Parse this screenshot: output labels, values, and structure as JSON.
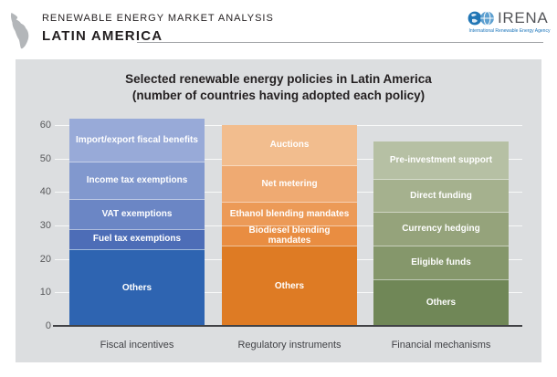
{
  "header": {
    "kicker": "RENEWABLE ENERGY MARKET ANALYSIS",
    "region": "LATIN AMERICA",
    "logo": {
      "word": "IRENA",
      "tagline": "International Renewable Energy Agency",
      "blue": "#1b75bb"
    }
  },
  "chart_data": {
    "type": "bar",
    "stacked": true,
    "title_line1": "Selected renewable energy policies in Latin America",
    "title_line2": "(number of countries having adopted each policy)",
    "xlabel": "",
    "ylabel": "",
    "ylim": [
      0,
      60
    ],
    "yticks": [
      0,
      10,
      20,
      30,
      40,
      50,
      60
    ],
    "grid": true,
    "legend": "none (labels inside segments)",
    "categories": [
      "Fiscal incentives",
      "Regulatory instruments",
      "Financial mechanisms"
    ],
    "bars": [
      {
        "category": "Fiscal incentives",
        "total": 62,
        "segments_top_to_bottom": [
          {
            "label": "Import/export fiscal benefits",
            "value": 13,
            "color": "#98aad8"
          },
          {
            "label": "Income tax exemptions",
            "value": 11,
            "color": "#8198ce"
          },
          {
            "label": "VAT exemptions",
            "value": 9,
            "color": "#6b86c5"
          },
          {
            "label": "Fuel tax exemptions",
            "value": 6,
            "color": "#4d6db7"
          },
          {
            "label": "Others",
            "value": 23,
            "color": "#2e64b1"
          }
        ]
      },
      {
        "category": "Regulatory instruments",
        "total": 60,
        "segments_top_to_bottom": [
          {
            "label": "Auctions",
            "value": 12,
            "color": "#f2bd8e"
          },
          {
            "label": "Net metering",
            "value": 11,
            "color": "#efaa72"
          },
          {
            "label": "Ethanol blending mandates",
            "value": 7,
            "color": "#ec9a57"
          },
          {
            "label": "Biodiesel blending mandates",
            "value": 6,
            "color": "#e98d41"
          },
          {
            "label": "Others",
            "value": 24,
            "color": "#de7b24"
          }
        ]
      },
      {
        "category": "Financial mechanisms",
        "total": 55,
        "segments_top_to_bottom": [
          {
            "label": "Pre-investment support",
            "value": 11,
            "color": "#b6c0a4"
          },
          {
            "label": "Direct funding",
            "value": 10,
            "color": "#a5b18e"
          },
          {
            "label": "Currency hedging",
            "value": 10,
            "color": "#95a37b"
          },
          {
            "label": "Eligible funds",
            "value": 10,
            "color": "#85976b"
          },
          {
            "label": "Others",
            "value": 14,
            "color": "#708757"
          }
        ]
      }
    ]
  },
  "colors": {
    "panel_background": "#dcdee0",
    "axis_line": "#414246",
    "tick_text": "#58595b",
    "gridline": "rgba(255,255,255,0.8)",
    "header_text": "#231f20",
    "irena_blue": "#1b75bb"
  }
}
